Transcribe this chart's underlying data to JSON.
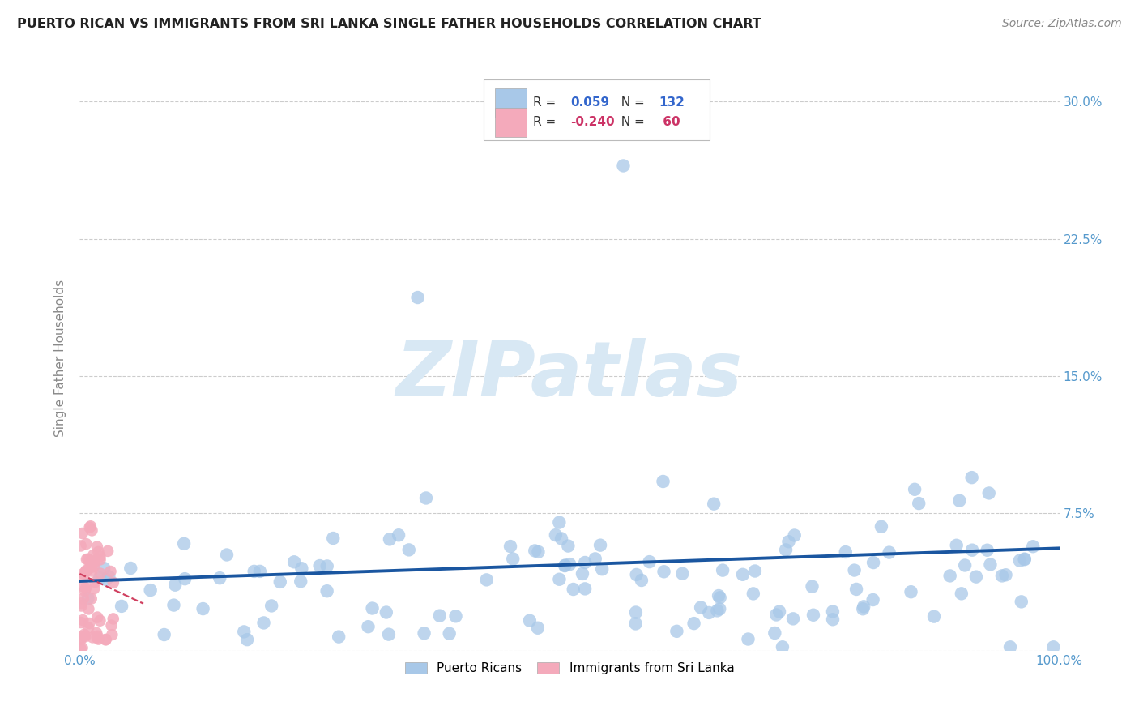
{
  "title": "PUERTO RICAN VS IMMIGRANTS FROM SRI LANKA SINGLE FATHER HOUSEHOLDS CORRELATION CHART",
  "source": "Source: ZipAtlas.com",
  "ylabel": "Single Father Households",
  "pr_R": 0.059,
  "pr_N": 132,
  "sl_R": -0.24,
  "sl_N": 60,
  "pr_color": "#a8c8e8",
  "sl_color": "#f4aabb",
  "pr_line_color": "#1a56a0",
  "sl_line_color": "#d04060",
  "background_color": "#ffffff",
  "grid_color": "#cccccc",
  "watermark_color": "#d8e8f4",
  "title_color": "#222222",
  "axis_label_color": "#5599cc",
  "legend_R_color": "#3366cc",
  "legend_neg_R_color": "#cc3366"
}
